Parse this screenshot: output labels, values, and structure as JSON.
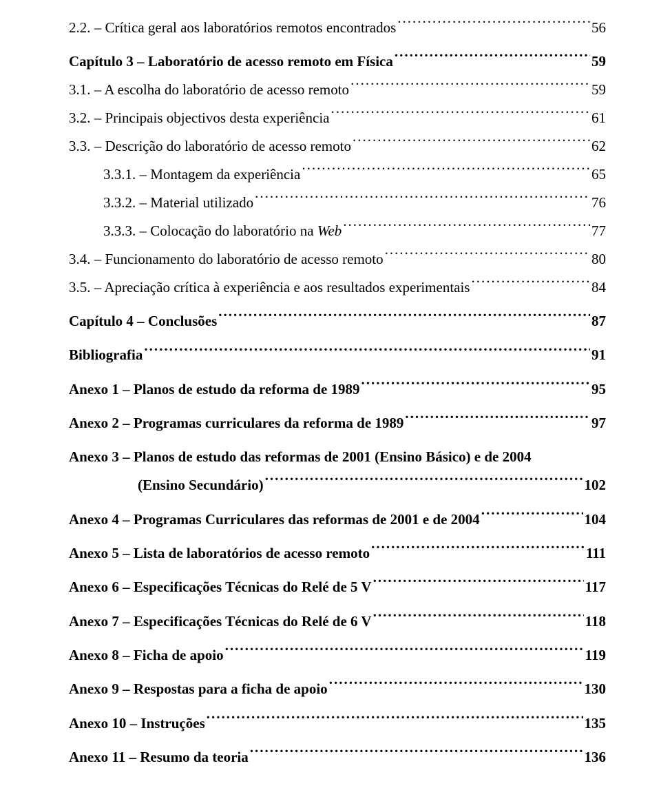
{
  "font": {
    "family": "Times New Roman",
    "size_pt": 16
  },
  "colors": {
    "text": "#000000",
    "background": "#ffffff"
  },
  "toc": [
    {
      "label": "2.2. – Crítica geral aos laboratórios remotos encontrados",
      "page": "56",
      "bold": false,
      "indent": 0
    },
    {
      "spacer": true
    },
    {
      "label": "Capítulo 3 – Laboratório de acesso remoto em Física",
      "page": "59",
      "bold": true,
      "indent": 0
    },
    {
      "label": "3.1. – A escolha do laboratório de acesso remoto",
      "page": "59",
      "bold": false,
      "indent": 0
    },
    {
      "label": "3.2. – Principais objectivos desta experiência",
      "page": "61",
      "bold": false,
      "indent": 0
    },
    {
      "label": "3.3. – Descrição do laboratório de acesso remoto",
      "page": "62",
      "bold": false,
      "indent": 0
    },
    {
      "label": "3.3.1. – Montagem da experiência",
      "page": "65",
      "bold": false,
      "indent": 50
    },
    {
      "label": "3.3.2. – Material utilizado",
      "page": "76",
      "bold": false,
      "indent": 50
    },
    {
      "label": "3.3.3. – Colocação do laboratório na Web",
      "page": "77",
      "bold": false,
      "indent": 50,
      "italicWord": "Web"
    },
    {
      "label": "3.4. – Funcionamento do laboratório de acesso remoto",
      "page": "80",
      "bold": false,
      "indent": 0
    },
    {
      "label": "3.5. – Apreciação crítica à experiência e aos resultados experimentais",
      "page": "84",
      "bold": false,
      "indent": 0
    },
    {
      "spacer": true
    },
    {
      "label": "Capítulo 4 – Conclusões",
      "page": "87",
      "bold": true,
      "indent": 0
    },
    {
      "spacer": true
    },
    {
      "label": "Bibliografia  ",
      "page": "91",
      "bold": true,
      "indent": 0
    },
    {
      "spacer": true
    },
    {
      "label": "Anexo 1 – Planos de estudo da reforma de 1989",
      "page": "95",
      "bold": true,
      "indent": 0
    },
    {
      "spacer": true
    },
    {
      "label": "Anexo 2 – Programas curriculares da reforma de 1989",
      "page": "97",
      "bold": true,
      "indent": 0
    },
    {
      "spacer": true
    },
    {
      "label": "Anexo 3 – Planos de estudo das reformas de 2001 (Ensino Básico) e de 2004",
      "bold": true,
      "indent": 0,
      "nobreak": true
    },
    {
      "label": "(Ensino Secundário)",
      "page": "102",
      "bold": true,
      "indent": 100,
      "continuation": true
    },
    {
      "spacer": true
    },
    {
      "label": "Anexo 4 – Programas Curriculares das reformas de 2001 e de 2004",
      "page": "104",
      "bold": true,
      "indent": 0
    },
    {
      "spacer": true
    },
    {
      "label": "Anexo 5 – Lista de laboratórios de acesso remoto",
      "page": "111",
      "bold": true,
      "indent": 0
    },
    {
      "spacer": true
    },
    {
      "label": "Anexo 6 – Especificações Técnicas do Relé de 5 V",
      "page": "117",
      "bold": true,
      "indent": 0
    },
    {
      "spacer": true
    },
    {
      "label": "Anexo 7 – Especificações Técnicas do Relé de 6 V",
      "page": "118",
      "bold": true,
      "indent": 0
    },
    {
      "spacer": true
    },
    {
      "label": "Anexo 8 – Ficha de apoio",
      "page": "119",
      "bold": true,
      "indent": 0
    },
    {
      "spacer": true
    },
    {
      "label": "Anexo 9 – Respostas para a ficha de apoio",
      "page": "130",
      "bold": true,
      "indent": 0
    },
    {
      "spacer": true
    },
    {
      "label": "Anexo 10 – Instruções",
      "page": "135",
      "bold": true,
      "indent": 0
    },
    {
      "spacer": true
    },
    {
      "label": "Anexo 11 – Resumo da teoria",
      "page": "136",
      "bold": true,
      "indent": 0
    }
  ]
}
